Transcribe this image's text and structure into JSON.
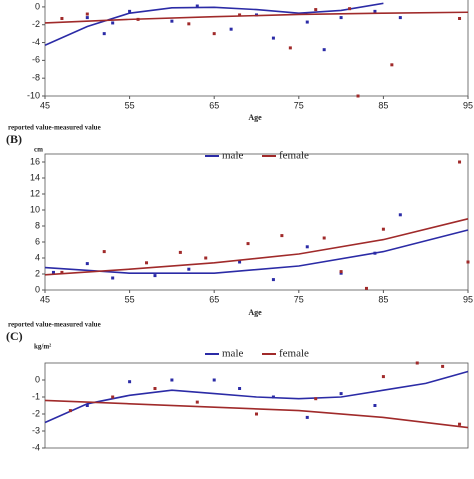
{
  "chart_data": [
    {
      "type": "scatter",
      "xlabel": "Age",
      "footer": "reported value-measured value",
      "xlim": [
        45,
        95
      ],
      "xticks": [
        45,
        55,
        65,
        75,
        85,
        95
      ],
      "ylim": [
        -10,
        1
      ],
      "yticks": [
        -10,
        -8,
        -6,
        -4,
        -2,
        0
      ],
      "series": [
        {
          "color": "#2b2ba6",
          "x": [
            50,
            52,
            53,
            55,
            60,
            63,
            67,
            70,
            72,
            76,
            78,
            80,
            84,
            87
          ],
          "values": [
            -1.2,
            -3,
            -1.8,
            -0.5,
            -1.6,
            0.1,
            -2.5,
            -0.9,
            -3.5,
            -1.7,
            -4.8,
            -1.2,
            -0.5,
            -1.2
          ],
          "fit_x": [
            45,
            50,
            55,
            60,
            65,
            70,
            75,
            80,
            85
          ],
          "fit_values": [
            -4.3,
            -2.2,
            -0.7,
            -0.1,
            -0.05,
            -0.3,
            -0.7,
            -0.4,
            0.4
          ]
        },
        {
          "color": "#a02a2a",
          "x": [
            47,
            50,
            56,
            62,
            65,
            68,
            74,
            77,
            81,
            82,
            86,
            94
          ],
          "values": [
            -1.3,
            -0.8,
            -1.4,
            -1.9,
            -3.0,
            -0.9,
            -4.6,
            -0.3,
            -0.2,
            -10,
            -6.5,
            -1.3
          ],
          "fit_x": [
            45,
            55,
            65,
            75,
            85,
            95
          ],
          "fit_values": [
            -1.8,
            -1.4,
            -1.1,
            -0.85,
            -0.7,
            -0.6
          ]
        }
      ]
    },
    {
      "type": "scatter",
      "panel_label": "(B)",
      "y_unit": "cm",
      "xlabel": "Age",
      "footer": "reported value-measured value",
      "xlim": [
        45,
        95
      ],
      "xticks": [
        45,
        55,
        65,
        75,
        85,
        95
      ],
      "ylim": [
        0,
        17
      ],
      "yticks": [
        0,
        2,
        4,
        6,
        8,
        10,
        12,
        14,
        16
      ],
      "legend": "top",
      "series": [
        {
          "name": "male",
          "color": "#2b2ba6",
          "x": [
            46,
            50,
            53,
            58,
            62,
            68,
            72,
            76,
            80,
            84,
            87
          ],
          "values": [
            2.2,
            3.3,
            1.5,
            1.8,
            2.6,
            3.5,
            1.3,
            5.4,
            2.1,
            4.6,
            9.4
          ],
          "fit_x": [
            45,
            55,
            65,
            75,
            85,
            95
          ],
          "fit_values": [
            2.8,
            2.1,
            2.1,
            3.0,
            4.8,
            7.5
          ]
        },
        {
          "name": "female",
          "color": "#a02a2a",
          "x": [
            47,
            52,
            57,
            61,
            64,
            69,
            73,
            78,
            80,
            83,
            85,
            94,
            95
          ],
          "values": [
            2.2,
            4.8,
            3.4,
            4.7,
            4.0,
            5.8,
            6.8,
            6.5,
            2.3,
            0.2,
            7.6,
            16,
            3.5
          ],
          "fit_x": [
            45,
            55,
            65,
            75,
            85,
            95
          ],
          "fit_values": [
            1.9,
            2.6,
            3.4,
            4.5,
            6.3,
            8.9
          ]
        }
      ]
    },
    {
      "type": "scatter",
      "panel_label": "(C)",
      "y_unit": "kg/m²",
      "xlim": [
        45,
        95
      ],
      "ylim": [
        -4,
        1
      ],
      "yticks": [
        -4,
        -3,
        -2,
        -1,
        0
      ],
      "legend": "top",
      "series": [
        {
          "name": "male",
          "color": "#2b2ba6",
          "x": [
            50,
            55,
            60,
            65,
            68,
            72,
            76,
            80,
            84
          ],
          "values": [
            -1.5,
            -0.1,
            0.0,
            0,
            -0.5,
            -1.0,
            -2.2,
            -0.8,
            -1.5
          ],
          "fit_x": [
            45,
            50,
            55,
            60,
            65,
            70,
            75,
            80,
            85,
            90,
            95
          ],
          "fit_values": [
            -2.5,
            -1.4,
            -0.9,
            -0.6,
            -0.8,
            -1.0,
            -1.1,
            -1.0,
            -0.6,
            -0.2,
            0.5
          ]
        },
        {
          "name": "female",
          "color": "#a02a2a",
          "x": [
            48,
            53,
            58,
            63,
            70,
            77,
            85,
            89,
            92,
            94
          ],
          "values": [
            -1.8,
            -1.0,
            -0.5,
            -1.3,
            -2.0,
            -1.1,
            0.2,
            1.0,
            0.8,
            -2.6
          ],
          "fit_x": [
            45,
            55,
            65,
            75,
            85,
            95
          ],
          "fit_values": [
            -1.2,
            -1.4,
            -1.6,
            -1.8,
            -2.2,
            -2.8
          ]
        }
      ]
    }
  ]
}
